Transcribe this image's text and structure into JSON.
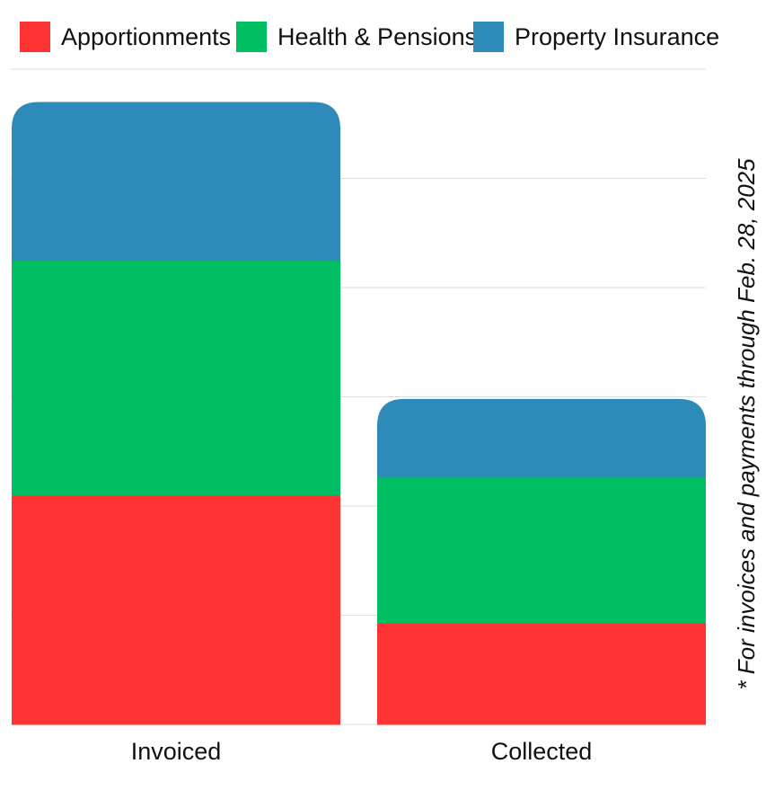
{
  "chart_data": {
    "type": "bar",
    "stacked": true,
    "categories": [
      "Invoiced",
      "Collected"
    ],
    "series": [
      {
        "name": "Apportionments",
        "color": "#fe3333",
        "values": [
          2.1,
          0.93
        ]
      },
      {
        "name": "Health & Pensions",
        "color": "#00bf63",
        "values": [
          2.15,
          1.34
        ]
      },
      {
        "name": "Property Insurance",
        "color": "#2e8ab8",
        "values": [
          1.45,
          0.71
        ]
      }
    ],
    "ylim": [
      0,
      6
    ],
    "grid": true,
    "gridline_color": "#dddddd",
    "legend": {
      "position": "top-left"
    },
    "footnote": "* For invoices and payments through Feb. 28, 2025",
    "title": "",
    "xlabel": "",
    "ylabel": ""
  }
}
